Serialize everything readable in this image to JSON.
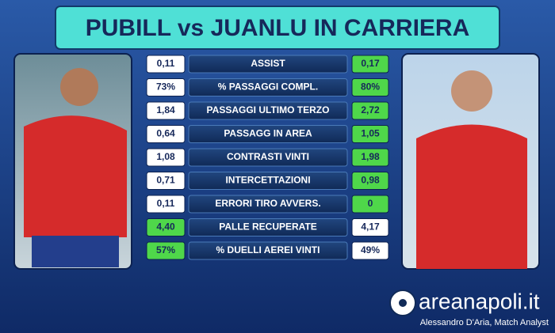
{
  "header": {
    "title": "PUBILL vs JUANLU IN CARRIERA"
  },
  "table": {
    "rows": [
      {
        "left": "0,11",
        "label": "ASSIST",
        "right": "0,17",
        "winner": "right"
      },
      {
        "left": "73%",
        "label": "% PASSAGGI COMPL.",
        "right": "80%",
        "winner": "right"
      },
      {
        "left": "1,84",
        "label": "PASSAGGI ULTIMO TERZO",
        "right": "2,72",
        "winner": "right"
      },
      {
        "left": "0,64",
        "label": "PASSAGG IN AREA",
        "right": "1,05",
        "winner": "right"
      },
      {
        "left": "1,08",
        "label": "CONTRASTI VINTI",
        "right": "1,98",
        "winner": "right"
      },
      {
        "left": "0,71",
        "label": "INTERCETTAZIONI",
        "right": "0,98",
        "winner": "right"
      },
      {
        "left": "0,11",
        "label": "ERRORI TIRO AVVERS.",
        "right": "0",
        "winner": "right"
      },
      {
        "left": "4,40",
        "label": "PALLE RECUPERATE",
        "right": "4,17",
        "winner": "left"
      },
      {
        "left": "57%",
        "label": "% DUELLI AEREI VINTI",
        "right": "49%",
        "winner": "left"
      }
    ]
  },
  "footer": {
    "brand": "areanapoli.it",
    "credit": "Alessandro D'Aria, Match Analyst"
  }
}
